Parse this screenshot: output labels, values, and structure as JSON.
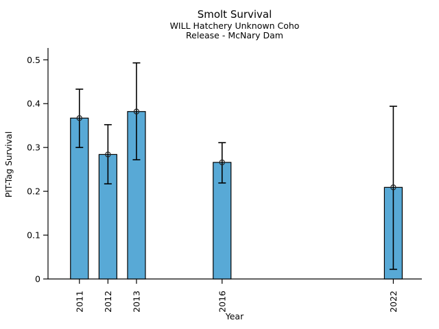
{
  "chart_data": {
    "type": "bar",
    "title": "Smolt Survival",
    "subtitle_line1": "WILL Hatchery Unknown Coho",
    "subtitle_line2": "Release - McNary Dam",
    "xlabel": "Year",
    "ylabel": "PIT-Tag Survival",
    "categories": [
      2011,
      2012,
      2013,
      2016,
      2022
    ],
    "values": [
      0.367,
      0.284,
      0.382,
      0.266,
      0.209
    ],
    "error_low": [
      0.3,
      0.217,
      0.272,
      0.219,
      0.022
    ],
    "error_high": [
      0.433,
      0.352,
      0.493,
      0.311,
      0.394
    ],
    "ylim": [
      0,
      0.527
    ],
    "xlim": [
      2009.9,
      2023.0
    ],
    "yticks": [
      0,
      0.1,
      0.2,
      0.3,
      0.4,
      0.5
    ],
    "ytick_labels": [
      "0",
      "0.1",
      "0.2",
      "0.3",
      "0.4",
      "0.5"
    ],
    "grid": false,
    "legend": "none",
    "marker": "open-circle",
    "xtick_rotation_deg": 90,
    "colors": {
      "bar_fill": "#58a9d6",
      "bar_edge": "#000000",
      "error_bar": "#000000",
      "marker_edge": "#222222",
      "axis": "#000000",
      "text": "#000000",
      "background": "#ffffff"
    }
  }
}
